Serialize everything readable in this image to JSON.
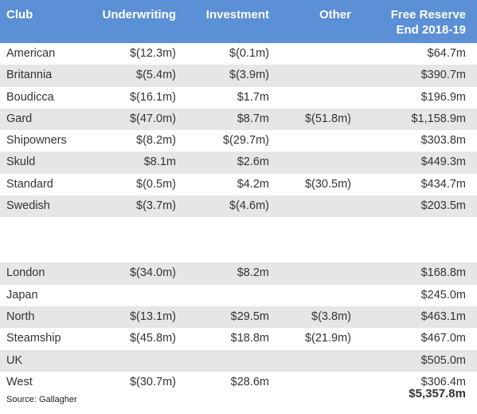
{
  "headers": {
    "club": "Club",
    "underwriting": "Underwriting",
    "investment": "Investment",
    "other": "Other",
    "free_reserve_line1": "Free Reserve",
    "free_reserve_line2": "End 2018-19"
  },
  "group1": [
    {
      "club": "American",
      "underwriting": "$(12.3m)",
      "investment": "$(0.1m)",
      "other": "",
      "free_reserve": "$64.7m"
    },
    {
      "club": "Britannia",
      "underwriting": "$(5.4m)",
      "investment": "$(3.9m)",
      "other": "",
      "free_reserve": "$390.7m"
    },
    {
      "club": "Boudicca",
      "underwriting": "$(16.1m)",
      "investment": "$1.7m",
      "other": "",
      "free_reserve": "$196.9m"
    },
    {
      "club": "Gard",
      "underwriting": "$(47.0m)",
      "investment": "$8.7m",
      "other": "$(51.8m)",
      "free_reserve": "$1,158.9m"
    },
    {
      "club": "Shipowners",
      "underwriting": "$(8.2m)",
      "investment": "$(29.7m)",
      "other": "",
      "free_reserve": "$303.8m"
    },
    {
      "club": "Skuld",
      "underwriting": "$8.1m",
      "investment": "$2.6m",
      "other": "",
      "free_reserve": "$449.3m"
    },
    {
      "club": "Standard",
      "underwriting": "$(0.5m)",
      "investment": "$4.2m",
      "other": "$(30.5m)",
      "free_reserve": "$434.7m"
    },
    {
      "club": "Swedish",
      "underwriting": "$(3.7m)",
      "investment": "$(4.6m)",
      "other": "",
      "free_reserve": "$203.5m"
    }
  ],
  "group2": [
    {
      "club": "London",
      "underwriting": "$(34.0m)",
      "investment": "$8.2m",
      "other": "",
      "free_reserve": "$168.8m"
    },
    {
      "club": "Japan",
      "underwriting": "",
      "investment": "",
      "other": "",
      "free_reserve": "$245.0m"
    },
    {
      "club": "North",
      "underwriting": "$(13.1m)",
      "investment": "$29.5m",
      "other": "$(3.8m)",
      "free_reserve": "$463.1m"
    },
    {
      "club": "Steamship",
      "underwriting": "$(45.8m)",
      "investment": "$18.8m",
      "other": "$(21.9m)",
      "free_reserve": "$467.0m"
    },
    {
      "club": "UK",
      "underwriting": "",
      "investment": "",
      "other": "",
      "free_reserve": "$505.0m"
    },
    {
      "club": "West",
      "underwriting": "$(30.7m)",
      "investment": "$28.6m",
      "other": "",
      "free_reserve": "$306.4m"
    }
  ],
  "footer": {
    "source": "Source: Gallagher",
    "total": "$5,357.8m"
  },
  "colors": {
    "header_bg": "#5b8fd6",
    "row_shade": "#e6e6e6"
  }
}
